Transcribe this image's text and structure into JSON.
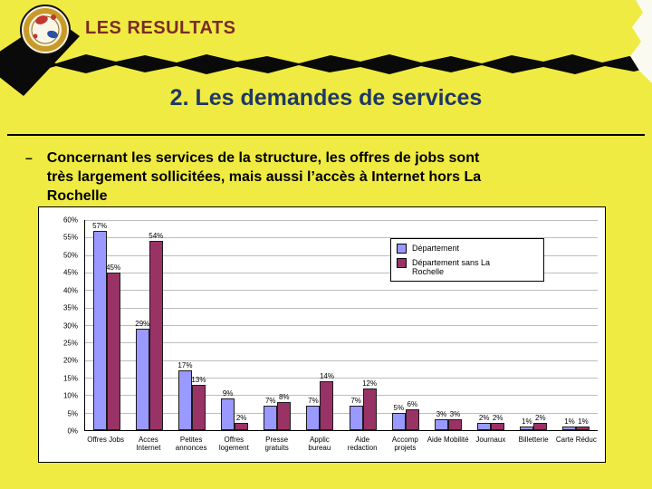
{
  "header": {
    "logo_icon": "magnifying-glass-icon",
    "title": "LES RESULTATS"
  },
  "slide": {
    "title": "2. Les demandes de services",
    "bullet_dash": "–",
    "bullet_lines": [
      "Concernant les services de la structure, les offres de jobs sont",
      "très largement sollicitées, mais aussi l’accès à Internet hors La",
      "Rochelle"
    ]
  },
  "colors": {
    "background": "#EFEB42",
    "header_text": "#7B2B26",
    "title_text": "#1F3864",
    "series1": "#9999FF",
    "series2": "#993366",
    "torn_edge": "#0A0A0A"
  },
  "chart_data": {
    "type": "bar",
    "categories": [
      "Offres Jobs",
      "Acces Internet",
      "Petites annonces",
      "Offres logement",
      "Presse gratuits",
      "Applic bureau",
      "Aide redaction",
      "Accomp projets",
      "Aide Mobilité",
      "Journaux",
      "Billetterie",
      "Carte Réduc"
    ],
    "series": [
      {
        "name": "Département",
        "color": "#9999FF",
        "values": [
          57,
          29,
          17,
          9,
          7,
          7,
          7,
          5,
          3,
          2,
          1,
          1
        ]
      },
      {
        "name": "Département sans La Rochelle",
        "color": "#993366",
        "values": [
          45,
          54,
          13,
          2,
          8,
          14,
          12,
          6,
          3,
          2,
          2,
          1
        ]
      }
    ],
    "title": "",
    "xlabel": "",
    "ylabel": "",
    "ylim": [
      0,
      60
    ],
    "ytick_step": 5,
    "ytick_suffix": "%",
    "value_label_suffix": "%",
    "grid": true,
    "legend_position": "top-right"
  }
}
